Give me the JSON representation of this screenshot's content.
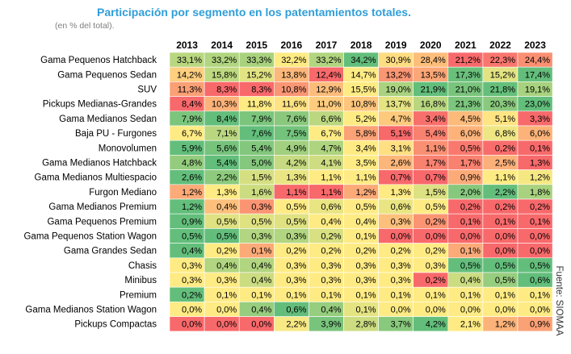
{
  "chart_data": {
    "type": "heatmap",
    "title": "Participación por segmento en los patentamientos totales.",
    "subtitle": "(en % del total).",
    "source": "Fuente: SIOMAA",
    "value_suffix": "%",
    "colors": {
      "low": "#f8696b",
      "mid": "#ffeb84",
      "high": "#63be7b"
    },
    "years": [
      "2013",
      "2014",
      "2015",
      "2016",
      "2017",
      "2018",
      "2019",
      "2020",
      "2021",
      "2022",
      "2023"
    ],
    "segments": [
      "Gama Pequenos Hatchback",
      "Gama Pequenos Sedan",
      "SUV",
      "Pickups Medianas-Grandes",
      "Gama Medianos Sedan",
      "Baja PU - Furgones",
      "Monovolumen",
      "Gama Medianos Hatchback",
      "Gama Medianos Multiespacio",
      "Furgon Mediano",
      "Gama Medianos Premium",
      "Gama Pequenos Premium",
      "Gama Pequenos Station Wagon",
      "Gama Grandes Sedan",
      "Chasis",
      "Minibus",
      "Premium",
      "Gama Medianos Station Wagon",
      "Pickups Compactas"
    ],
    "values": [
      [
        33.1,
        33.2,
        33.3,
        32.2,
        33.2,
        34.2,
        30.9,
        28.4,
        21.2,
        22.3,
        24.4
      ],
      [
        14.2,
        15.8,
        15.2,
        13.8,
        12.4,
        14.7,
        13.2,
        13.5,
        17.3,
        15.2,
        17.4
      ],
      [
        11.3,
        8.3,
        8.3,
        10.8,
        12.9,
        15.5,
        19.0,
        21.9,
        21.0,
        21.8,
        19.1
      ],
      [
        8.4,
        10.3,
        11.8,
        11.6,
        11.0,
        10.8,
        13.7,
        16.8,
        21.3,
        20.3,
        23.0
      ],
      [
        7.9,
        8.4,
        7.9,
        7.6,
        6.6,
        5.2,
        4.7,
        3.4,
        4.5,
        5.1,
        3.3
      ],
      [
        6.7,
        7.1,
        7.6,
        7.5,
        6.7,
        5.8,
        5.1,
        5.4,
        6.0,
        6.8,
        6.0
      ],
      [
        5.9,
        5.6,
        5.4,
        4.9,
        4.7,
        3.4,
        3.1,
        1.1,
        0.5,
        0.2,
        0.1
      ],
      [
        4.8,
        5.4,
        5.0,
        4.2,
        4.1,
        3.5,
        2.6,
        1.7,
        1.7,
        2.5,
        1.3
      ],
      [
        2.6,
        2.2,
        1.5,
        1.3,
        1.1,
        1.1,
        0.7,
        0.7,
        0.9,
        1.1,
        1.2
      ],
      [
        1.2,
        1.3,
        1.6,
        1.1,
        1.1,
        1.2,
        1.3,
        1.5,
        2.0,
        2.2,
        1.8
      ],
      [
        1.2,
        0.4,
        0.3,
        0.5,
        0.6,
        0.5,
        0.6,
        0.5,
        0.2,
        0.2,
        0.2
      ],
      [
        0.9,
        0.5,
        0.5,
        0.5,
        0.4,
        0.4,
        0.3,
        0.2,
        0.1,
        0.1,
        0.1
      ],
      [
        0.5,
        0.5,
        0.3,
        0.3,
        0.2,
        0.1,
        0.0,
        0.0,
        0.0,
        0.0,
        0.0
      ],
      [
        0.4,
        0.2,
        0.1,
        0.2,
        0.2,
        0.2,
        0.2,
        0.2,
        0.1,
        0.0,
        0.0
      ],
      [
        0.3,
        0.4,
        0.4,
        0.3,
        0.3,
        0.3,
        0.3,
        0.3,
        0.5,
        0.5,
        0.5
      ],
      [
        0.3,
        0.3,
        0.4,
        0.3,
        0.3,
        0.3,
        0.3,
        0.2,
        0.4,
        0.5,
        0.6
      ],
      [
        0.2,
        0.1,
        0.1,
        0.1,
        0.1,
        0.1,
        0.1,
        0.1,
        0.1,
        0.1,
        0.1
      ],
      [
        0.0,
        0.0,
        0.4,
        0.6,
        0.4,
        0.1,
        0.0,
        0.0,
        0.0,
        0.0,
        0.0
      ],
      [
        0.0,
        0.0,
        0.0,
        2.2,
        3.9,
        2.8,
        3.7,
        4.2,
        2.1,
        1.2,
        0.9
      ]
    ]
  }
}
